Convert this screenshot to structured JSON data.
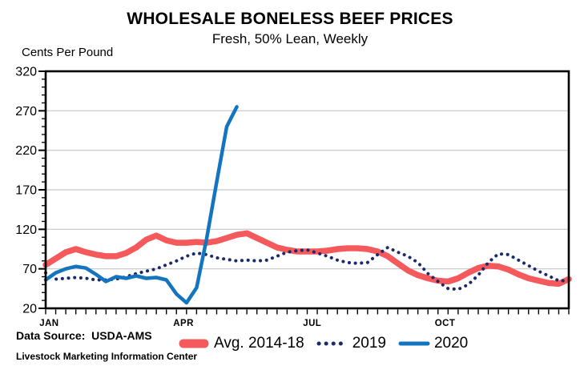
{
  "title": "WHOLESALE BONELESS BEEF PRICES",
  "subtitle": "Fresh, 50% Lean, Weekly",
  "y_axis_label": "Cents Per Pound",
  "source": "Data Source:  USDA-AMS",
  "footer": "Livestock Marketing Information Center",
  "colors": {
    "avg_2014_18": "#F4595B",
    "y2019": "#1B2A6B",
    "y2020": "#1375BF",
    "gridline": "#C6C6C6",
    "axis": "#000000"
  },
  "chart_data": {
    "type": "line",
    "title": "WHOLESALE BONELESS BEEF PRICES",
    "subtitle": "Fresh, 50% Lean, Weekly",
    "xlabel": "",
    "ylabel": "Cents Per Pound",
    "ylim": [
      20,
      320
    ],
    "y_major_ticks": [
      20,
      70,
      120,
      170,
      220,
      270,
      320
    ],
    "y_minor_step": 10,
    "grid": "horizontal",
    "legend_position": "bottom",
    "x_unit": "week",
    "x_weeks": 53,
    "x_month_labels": [
      {
        "label": "JAN",
        "week": 1.35
      },
      {
        "label": "APR",
        "week": 14.7
      },
      {
        "label": "JUL",
        "week": 27.5
      },
      {
        "label": "OCT",
        "week": 40.7
      }
    ],
    "series": [
      {
        "name": "Avg. 2014-18",
        "color": "#F4595B",
        "style": "solid-thick",
        "start_week": 1,
        "values": [
          75,
          83,
          91,
          95,
          91,
          88,
          86,
          86,
          90,
          97,
          107,
          112,
          106,
          103,
          103,
          104,
          103,
          105,
          109,
          113,
          115,
          109,
          103,
          97,
          94,
          92,
          92,
          92,
          93,
          95,
          96,
          96,
          95,
          92,
          86,
          77,
          68,
          62,
          58,
          55,
          54,
          58,
          65,
          71,
          74,
          73,
          69,
          63,
          58,
          55,
          52,
          51,
          57
        ]
      },
      {
        "name": "2019",
        "color": "#1B2A6B",
        "style": "dotted",
        "start_week": 1,
        "values": [
          65,
          57,
          58,
          59,
          58,
          56,
          56,
          57,
          60,
          64,
          67,
          70,
          75,
          80,
          86,
          90,
          88,
          84,
          82,
          80,
          81,
          80,
          81,
          86,
          91,
          93,
          94,
          90,
          86,
          81,
          78,
          77,
          78,
          88,
          97,
          91,
          86,
          78,
          64,
          54,
          45,
          44,
          50,
          62,
          78,
          89,
          88,
          81,
          74,
          67,
          61,
          55,
          55
        ]
      },
      {
        "name": "2020",
        "color": "#1375BF",
        "style": "solid",
        "start_week": 1,
        "values": [
          56,
          65,
          70,
          73,
          71,
          63,
          54,
          60,
          58,
          61,
          58,
          59,
          56,
          38,
          27,
          46,
          108,
          180,
          250,
          275
        ]
      }
    ]
  }
}
